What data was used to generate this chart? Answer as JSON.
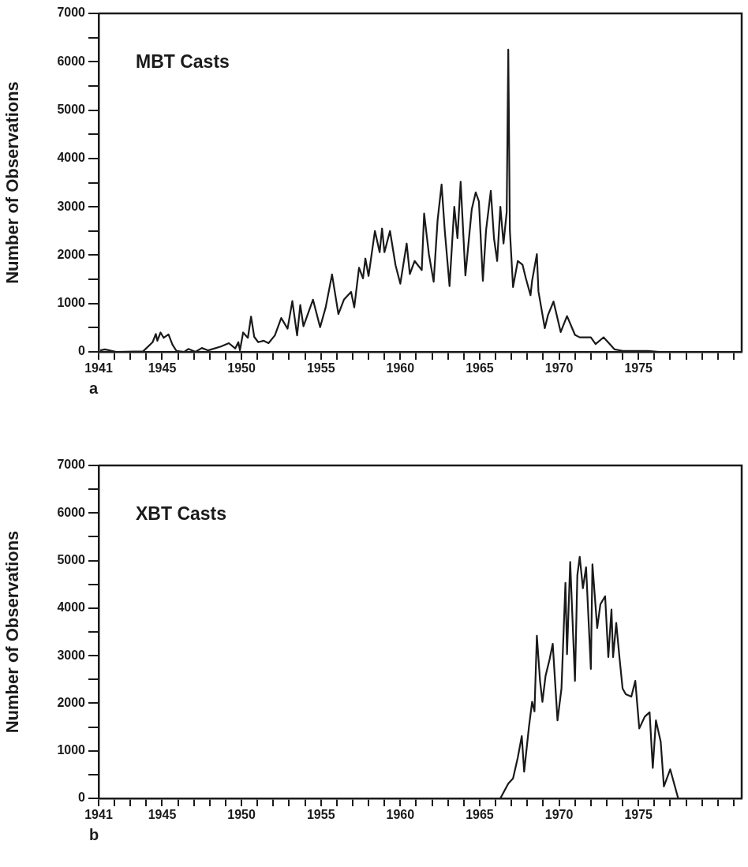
{
  "chart_data": [
    {
      "type": "line",
      "title": "MBT Casts",
      "ylabel": "Number of Observations",
      "annotations": [
        "a"
      ],
      "color": "#1a1a1a",
      "marker": "none",
      "line_style": "solid",
      "grid": false,
      "legend": false,
      "xlim": [
        1941,
        1981.5
      ],
      "ylim": [
        0,
        7000
      ],
      "xticks": [
        1941,
        {
          "value": 1942,
          "label": null
        },
        {
          "value": 1943,
          "label": null
        },
        {
          "value": 1944,
          "label": null
        },
        1945,
        {
          "value": 1946,
          "label": null
        },
        {
          "value": 1947,
          "label": null
        },
        {
          "value": 1948,
          "label": null
        },
        {
          "value": 1949,
          "label": null
        },
        1950,
        {
          "value": 1951,
          "label": null
        },
        {
          "value": 1952,
          "label": null
        },
        {
          "value": 1953,
          "label": null
        },
        {
          "value": 1954,
          "label": null
        },
        1955,
        {
          "value": 1956,
          "label": null
        },
        {
          "value": 1957,
          "label": null
        },
        {
          "value": 1958,
          "label": null
        },
        {
          "value": 1959,
          "label": null
        },
        1960,
        {
          "value": 1961,
          "label": null
        },
        {
          "value": 1962,
          "label": null
        },
        {
          "value": 1963,
          "label": null
        },
        {
          "value": 1964,
          "label": null
        },
        1965,
        {
          "value": 1966,
          "label": null
        },
        {
          "value": 1967,
          "label": null
        },
        {
          "value": 1968,
          "label": null
        },
        {
          "value": 1969,
          "label": null
        },
        1970,
        {
          "value": 1971,
          "label": null
        },
        {
          "value": 1972,
          "label": null
        },
        {
          "value": 1973,
          "label": null
        },
        {
          "value": 1974,
          "label": null
        },
        1975,
        {
          "value": 1976,
          "label": null
        },
        {
          "value": 1977,
          "label": null
        },
        {
          "value": 1978,
          "label": null
        },
        {
          "value": 1979,
          "label": null
        },
        {
          "value": 1980,
          "label": null
        },
        {
          "value": 1981,
          "label": null
        }
      ],
      "yticks": [
        0,
        {
          "value": 500,
          "label": null
        },
        1000,
        {
          "value": 1500,
          "label": null
        },
        2000,
        {
          "value": 2500,
          "label": null
        },
        3000,
        {
          "value": 3500,
          "label": null
        },
        4000,
        {
          "value": 4500,
          "label": null
        },
        5000,
        {
          "value": 5500,
          "label": null
        },
        6000,
        {
          "value": 6500,
          "label": null
        },
        7000
      ],
      "x": [
        1941.1,
        1941.4,
        1942.1,
        1943.8,
        1944.4,
        1944.6,
        1944.7,
        1944.9,
        1945.1,
        1945.4,
        1945.65,
        1945.9,
        1946.4,
        1946.65,
        1947.1,
        1947.5,
        1947.9,
        1948.7,
        1949.2,
        1949.6,
        1949.8,
        1949.9,
        1950.1,
        1950.4,
        1950.6,
        1950.8,
        1951.05,
        1951.4,
        1951.7,
        1952.1,
        1952.5,
        1952.9,
        1953.2,
        1953.5,
        1953.7,
        1953.9,
        1954.5,
        1954.95,
        1955.3,
        1955.7,
        1956.1,
        1956.45,
        1956.9,
        1957.1,
        1957.4,
        1957.65,
        1957.8,
        1958.0,
        1958.4,
        1958.7,
        1958.85,
        1959.0,
        1959.35,
        1959.7,
        1960.0,
        1960.4,
        1960.6,
        1960.9,
        1961.35,
        1961.5,
        1961.8,
        1962.1,
        1962.35,
        1962.6,
        1962.8,
        1963.1,
        1963.4,
        1963.6,
        1963.8,
        1964.1,
        1964.5,
        1964.75,
        1964.95,
        1965.2,
        1965.4,
        1965.7,
        1965.9,
        1966.1,
        1966.3,
        1966.5,
        1966.7,
        1966.8,
        1966.9,
        1967.1,
        1967.4,
        1967.7,
        1967.9,
        1968.2,
        1968.3,
        1968.6,
        1968.7,
        1969.1,
        1969.3,
        1969.65,
        1970.1,
        1970.5,
        1971.0,
        1971.3,
        1972.0,
        1972.3,
        1972.8,
        1973.5,
        1974.0,
        1975.6,
        1976.3,
        1978
      ],
      "values": [
        30,
        50,
        0,
        10,
        200,
        370,
        230,
        400,
        290,
        360,
        150,
        20,
        0,
        60,
        0,
        80,
        30,
        110,
        180,
        70,
        200,
        30,
        400,
        290,
        730,
        310,
        200,
        230,
        180,
        340,
        700,
        480,
        1050,
        340,
        970,
        530,
        1080,
        510,
        920,
        1600,
        780,
        1080,
        1240,
        920,
        1740,
        1520,
        1930,
        1570,
        2500,
        2060,
        2550,
        2060,
        2500,
        1790,
        1410,
        2240,
        1610,
        1880,
        1690,
        2860,
        2020,
        1450,
        2730,
        3460,
        2510,
        1360,
        3000,
        2350,
        3520,
        1580,
        2950,
        3300,
        3110,
        1470,
        2510,
        3330,
        2350,
        1880,
        3000,
        2240,
        2890,
        6250,
        2510,
        1340,
        1880,
        1800,
        1530,
        1170,
        1470,
        2020,
        1250,
        490,
        760,
        1040,
        410,
        740,
        350,
        300,
        300,
        160,
        300,
        50,
        20,
        20,
        0,
        0
      ]
    },
    {
      "type": "line",
      "title": "XBT Casts",
      "ylabel": "Number of Observations",
      "annotations": [
        "b"
      ],
      "color": "#1a1a1a",
      "marker": "none",
      "line_style": "solid",
      "grid": false,
      "legend": false,
      "xlim": [
        1941,
        1981.5
      ],
      "ylim": [
        0,
        7000
      ],
      "xticks": [
        1941,
        {
          "value": 1942,
          "label": null
        },
        {
          "value": 1943,
          "label": null
        },
        {
          "value": 1944,
          "label": null
        },
        1945,
        {
          "value": 1946,
          "label": null
        },
        {
          "value": 1947,
          "label": null
        },
        {
          "value": 1948,
          "label": null
        },
        {
          "value": 1949,
          "label": null
        },
        1950,
        {
          "value": 1951,
          "label": null
        },
        {
          "value": 1952,
          "label": null
        },
        {
          "value": 1953,
          "label": null
        },
        {
          "value": 1954,
          "label": null
        },
        1955,
        {
          "value": 1956,
          "label": null
        },
        {
          "value": 1957,
          "label": null
        },
        {
          "value": 1958,
          "label": null
        },
        {
          "value": 1959,
          "label": null
        },
        1960,
        {
          "value": 1961,
          "label": null
        },
        {
          "value": 1962,
          "label": null
        },
        {
          "value": 1963,
          "label": null
        },
        {
          "value": 1964,
          "label": null
        },
        1965,
        {
          "value": 1966,
          "label": null
        },
        {
          "value": 1967,
          "label": null
        },
        {
          "value": 1968,
          "label": null
        },
        {
          "value": 1969,
          "label": null
        },
        1970,
        {
          "value": 1971,
          "label": null
        },
        {
          "value": 1972,
          "label": null
        },
        {
          "value": 1973,
          "label": null
        },
        {
          "value": 1974,
          "label": null
        },
        1975,
        {
          "value": 1976,
          "label": null
        },
        {
          "value": 1977,
          "label": null
        },
        {
          "value": 1978,
          "label": null
        },
        {
          "value": 1979,
          "label": null
        },
        {
          "value": 1980,
          "label": null
        },
        {
          "value": 1981,
          "label": null
        }
      ],
      "yticks": [
        0,
        {
          "value": 500,
          "label": null
        },
        1000,
        {
          "value": 1500,
          "label": null
        },
        2000,
        {
          "value": 2500,
          "label": null
        },
        3000,
        {
          "value": 3500,
          "label": null
        },
        4000,
        {
          "value": 4500,
          "label": null
        },
        5000,
        {
          "value": 5500,
          "label": null
        },
        6000,
        {
          "value": 6500,
          "label": null
        },
        7000
      ],
      "x": [
        1966.3,
        1966.8,
        1967.1,
        1967.4,
        1967.65,
        1967.8,
        1968.1,
        1968.3,
        1968.45,
        1968.6,
        1968.8,
        1968.95,
        1969.15,
        1969.4,
        1969.6,
        1969.9,
        1970.15,
        1970.4,
        1970.5,
        1970.7,
        1971.0,
        1971.15,
        1971.3,
        1971.5,
        1971.7,
        1972.0,
        1972.1,
        1972.4,
        1972.6,
        1972.9,
        1973.1,
        1973.3,
        1973.4,
        1973.6,
        1973.8,
        1974.0,
        1974.2,
        1974.55,
        1974.8,
        1975.05,
        1975.4,
        1975.7,
        1975.9,
        1976.1,
        1976.4,
        1976.6,
        1977.0,
        1977.5
      ],
      "values": [
        0,
        310,
        420,
        860,
        1310,
        560,
        1500,
        2030,
        1830,
        3420,
        2470,
        2030,
        2580,
        2920,
        3250,
        1640,
        2310,
        4530,
        3030,
        4970,
        2470,
        4690,
        5080,
        4420,
        4860,
        2720,
        4920,
        3580,
        4080,
        4250,
        2970,
        3970,
        2970,
        3690,
        2970,
        2310,
        2190,
        2140,
        2470,
        1470,
        1720,
        1810,
        640,
        1640,
        1190,
        250,
        610,
        0
      ]
    }
  ]
}
